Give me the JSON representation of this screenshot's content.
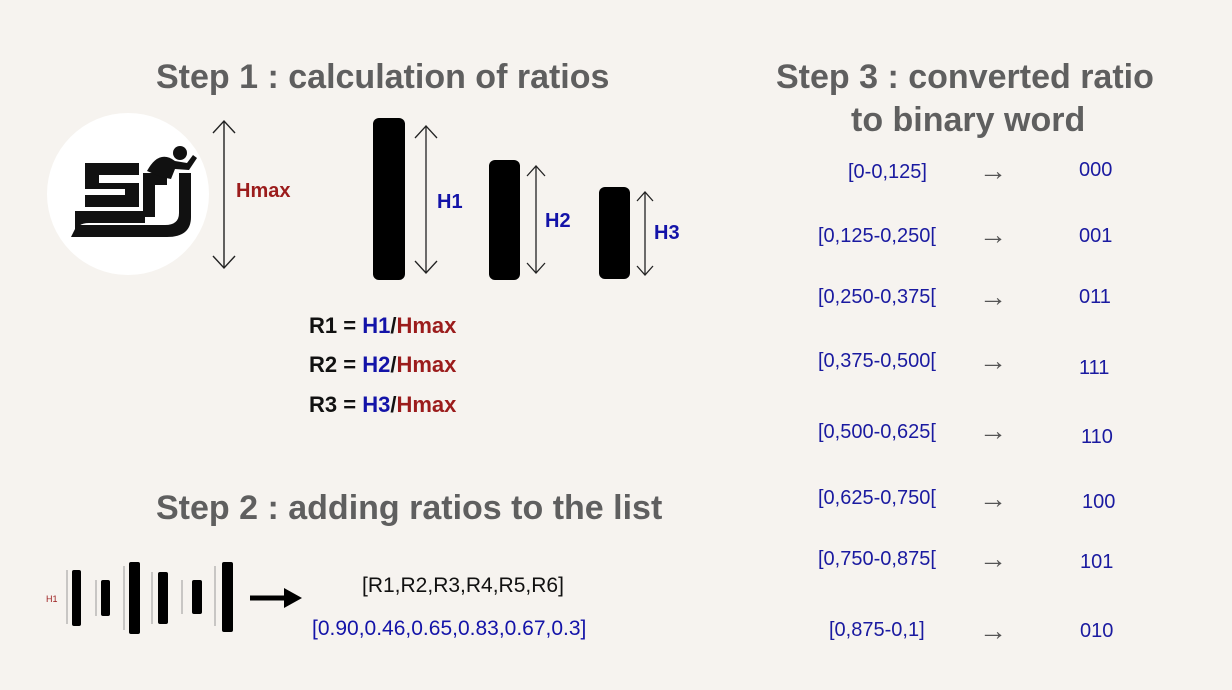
{
  "step1": {
    "title": "Step 1 : calculation of ratios",
    "hmax_label": "Hmax",
    "bars": [
      {
        "label": "H1"
      },
      {
        "label": "H2"
      },
      {
        "label": "H3"
      }
    ],
    "equations": [
      {
        "lhs": "R1 = ",
        "h": "H1",
        "sep": "/",
        "hmax": "Hmax"
      },
      {
        "lhs": "R2 = ",
        "h": "H2",
        "sep": "/",
        "hmax": "Hmax"
      },
      {
        "lhs": "R3 = ",
        "h": "H3",
        "sep": "/",
        "hmax": "Hmax"
      }
    ]
  },
  "step2": {
    "title": "Step 2 : adding ratios to the list",
    "mini_label": "H1",
    "list_names": "[R1,R2,R3,R4,R5,R6]",
    "list_values": "[0.90,0.46,0.65,0.83,0.67,0.3]"
  },
  "step3": {
    "title_line1": "Step 3 : converted ratio",
    "title_line2": "to binary word",
    "arrow": "→",
    "rows": [
      {
        "range": "[0-0,125]",
        "code": "000"
      },
      {
        "range": "[0,125-0,250[",
        "code": "001"
      },
      {
        "range": "[0,250-0,375[",
        "code": "011"
      },
      {
        "range": "[0,375-0,500[",
        "code": "111"
      },
      {
        "range": "[0,500-0,625[",
        "code": "110"
      },
      {
        "range": "[0,625-0,750[",
        "code": "100"
      },
      {
        "range": "[0,750-0,875[",
        "code": "101"
      },
      {
        "range": "[0,875-0,1]",
        "code": "010"
      }
    ]
  },
  "colors": {
    "heading": "#5f5f5f",
    "blue": "#1313a8",
    "red": "#9b1c1c",
    "background": "#f6f3ef"
  }
}
